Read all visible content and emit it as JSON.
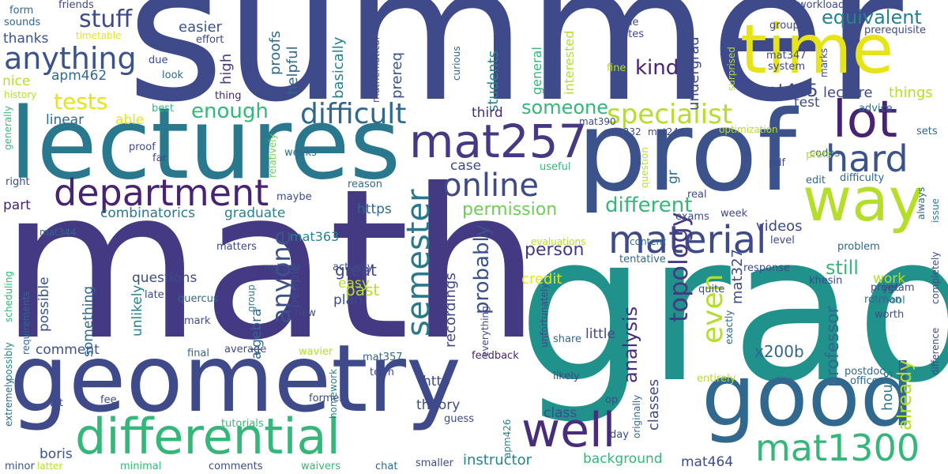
{
  "words": {
    "summer": "summer",
    "math": "math",
    "grad": "grad",
    "prof": "prof",
    "lectures": "lectures",
    "geometry": "geometry",
    "good": "good",
    "time": "time",
    "way": "way",
    "material": "material",
    "differential": "differential",
    "well": "well",
    "lot": "lot",
    "mat257": "mat257",
    "department": "department",
    "mat1300": "mat1300",
    "hard": "hard",
    "anything": "anything",
    "online": "online",
    "semester": "semester",
    "difficult": "difficult",
    "specialist": "specialist",
    "topology": "topology",
    "anyone": "anyone",
    "stuff": "stuff",
    "even": "even",
    "equivalent": "equivalent",
    "kind": "kind",
    "tests": "tests",
    "someone": "someone",
    "enough": "enough",
    "mat425": "mat425",
    "lecture": "lecture",
    "things": "things",
    "person": "person",
    "different": "different",
    "analysis": "analysis",
    "probably": "probably",
    "professor": "professor",
    "permission": "permission",
    "still": "still",
    "credit": "credit",
    "already": "already",
    "graduate": "graduate",
    "combinatorics": "combinatorics",
    "recordings": "recordings",
    "instructor": "instructor",
    "background": "background",
    "x200b": "x200b",
    "mat327": "mat327",
    "classes": "classes",
    "videos": "videos",
    "hours": "hours",
    "mat464": "mat464",
    "easier": "easier",
    "proofs": "proofs",
    "helpful": "helpful",
    "basically": "basically",
    "prereq": "prereq",
    "students": "students",
    "interested": "interested",
    "general": "general",
    "high": "high",
    "undergrad": "undergrad",
    "thanks": "thanks",
    "apm462": "apm462",
    "nice": "nice",
    "linear": "linear",
    "able": "able",
    "third": "third",
    "test": "test",
    "questions": "questions",
    "possible": "possible",
    "comment": "comment",
    "something": "something",
    "unlikely": "unlikely",
    "algebra": "algebra",
    "people": "people",
    "great": "great",
    "easy": "easy",
    "plan": "plan",
    "past": "past",
    "work": "work",
    "https": "https",
    "part": "part",
    "mat363": "mat363",
    "http": "http",
    "theory": "theory",
    "class": "class",
    "little": "little",
    "case": "case",
    "boris": "boris",
    "tutorials": "tutorials",
    "form": "form",
    "friends": "friends",
    "sounds": "sounds",
    "timetable": "timetable",
    "effort": "effort",
    "due": "due",
    "look": "look",
    "history": "history",
    "thing": "thing",
    "best": "best",
    "generally": "generally",
    "proof": "proof",
    "far": "far",
    "weeks": "weeks",
    "right": "right",
    "relatively": "relatively",
    "maybe": "maybe",
    "reason": "reason",
    "mat344": "mat344",
    "matters": "matters",
    "scheduling": "scheduling",
    "natural": "natural",
    "actually": "actually",
    "late": "late",
    "quercus": "quercus",
    "mark": "mark",
    "requirements": "requirements",
    "possibly": "possibly",
    "group": "group",
    "average": "average",
    "final": "final",
    "new": "new",
    "wavier": "wavier",
    "feedback": "feedback",
    "homework": "homework",
    "mat357": "mat357",
    "term": "term",
    "former": "former",
    "extremely": "extremely",
    "bit": "bit",
    "fee": "fee",
    "guess": "guess",
    "minor": "minor",
    "latter": "latter",
    "minimal": "minimal",
    "comments": "comments",
    "waivers": "waivers",
    "chat": "chat",
    "smaller": "smaller",
    "apm426": "apm426",
    "unfortunately": "unfortunately",
    "everything": "everything",
    "likely": "likely",
    "op": "op",
    "day": "day",
    "originally": "originally",
    "share": "share",
    "tentative": "tentative",
    "khesin": "khesin",
    "rotman": "rotman",
    "quite": "quite",
    "response": "response",
    "exactly": "exactly",
    "postdoc": "postdoc",
    "office": "office",
    "entirely": "entirely",
    "yet": "yet",
    "program": "program",
    "school": "school",
    "worth": "worth",
    "difference": "difference",
    "completely": "completely",
    "issue": "issue",
    "always": "always",
    "problem": "problem",
    "level": "level",
    "week": "week",
    "real": "real",
    "exams": "exams",
    "content": "content",
    "evaluations": "evaluations",
    "mat390": "mat390",
    "mat332": "mat332",
    "mat244": "mat244",
    "useful": "useful",
    "question": "question",
    "gr": "gr",
    "pdf": "pdf",
    "edit": "edit",
    "difficulty": "difficulty",
    "codes": "codes",
    "profs": "profs",
    "sets": "sets",
    "optimization": "optimization",
    "advice": "advice",
    "surprised": "surprised",
    "mat347": "mat347",
    "system": "system",
    "marks": "marks",
    "fine": "fine",
    "pde": "pde",
    "notes": "notes",
    "groups": "groups",
    "workload": "workload",
    "prerequisite": "prerequisite",
    "curious": "curious",
    "mathematical": "mathematical"
  },
  "colors": {
    "navy": "#3e4a89",
    "indigo": "#472d7b",
    "purple": "#482374",
    "blue": "#3b528b",
    "steel": "#31688e",
    "teal": "#26828e",
    "aqua": "#1f9e89",
    "green": "#35b779",
    "lime": "#6ece58",
    "yellowgreen": "#b5de2b",
    "yellow": "#e6e419"
  }
}
